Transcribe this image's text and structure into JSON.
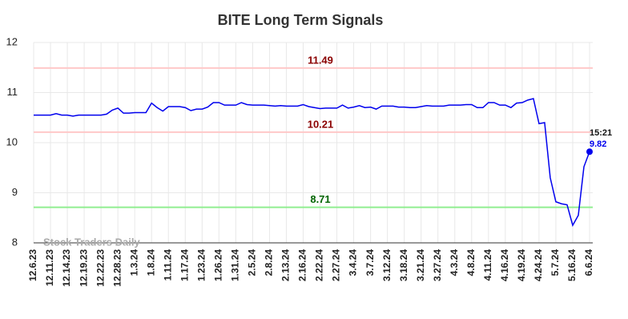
{
  "chart_data": {
    "type": "line",
    "title": "BITE Long Term Signals",
    "categories": [
      "12.6.23",
      null,
      null,
      "12.11.23",
      null,
      null,
      "12.14.23",
      null,
      null,
      "12.19.23",
      null,
      null,
      "12.22.23",
      null,
      null,
      "12.28.23",
      null,
      null,
      "1.3.24",
      null,
      null,
      "1.8.24",
      null,
      null,
      "1.11.24",
      null,
      null,
      "1.17.24",
      null,
      null,
      "1.23.24",
      null,
      null,
      "1.26.24",
      null,
      null,
      "1.31.24",
      null,
      null,
      "2.5.24",
      null,
      null,
      "2.8.24",
      null,
      null,
      "2.13.24",
      null,
      null,
      "2.16.24",
      null,
      null,
      "2.22.24",
      null,
      null,
      "2.27.24",
      null,
      null,
      "3.4.24",
      null,
      null,
      "3.7.24",
      null,
      null,
      "3.12.24",
      null,
      null,
      "3.18.24",
      null,
      null,
      "3.21.24",
      null,
      null,
      "3.27.24",
      null,
      null,
      "4.3.24",
      null,
      null,
      "4.8.24",
      null,
      null,
      "4.11.24",
      null,
      null,
      "4.16.24",
      null,
      null,
      "4.19.24",
      null,
      null,
      "4.24.24",
      null,
      null,
      "5.7.24",
      null,
      null,
      "5.16.24",
      null,
      null,
      "6.6.24"
    ],
    "values": [
      10.55,
      10.55,
      10.55,
      10.55,
      10.58,
      10.55,
      10.55,
      10.53,
      10.55,
      10.55,
      10.55,
      10.55,
      10.55,
      10.57,
      10.65,
      10.69,
      10.59,
      10.59,
      10.6,
      10.6,
      10.6,
      10.79,
      10.7,
      10.63,
      10.72,
      10.72,
      10.72,
      10.7,
      10.64,
      10.67,
      10.67,
      10.71,
      10.8,
      10.8,
      10.75,
      10.75,
      10.75,
      10.8,
      10.76,
      10.75,
      10.75,
      10.75,
      10.74,
      10.73,
      10.74,
      10.73,
      10.73,
      10.73,
      10.76,
      10.72,
      10.7,
      10.68,
      10.69,
      10.69,
      10.69,
      10.75,
      10.69,
      10.71,
      10.74,
      10.7,
      10.71,
      10.67,
      10.73,
      10.73,
      10.73,
      10.71,
      10.71,
      10.7,
      10.7,
      10.72,
      10.74,
      10.73,
      10.73,
      10.73,
      10.75,
      10.75,
      10.75,
      10.76,
      10.76,
      10.7,
      10.7,
      10.8,
      10.8,
      10.75,
      10.75,
      10.7,
      10.79,
      10.8,
      10.85,
      10.88,
      10.38,
      10.4,
      9.3,
      8.82,
      8.78,
      8.76,
      8.35,
      8.55,
      9.52,
      9.82
    ],
    "color": "#0000ee",
    "ylim": [
      8,
      12
    ],
    "yticks": [
      8,
      9,
      10,
      11,
      12
    ],
    "grid": true,
    "reference_lines": [
      {
        "value": 11.49,
        "color": "#ffc8c8",
        "text_color": "#8b0000"
      },
      {
        "value": 10.21,
        "color": "#ffc8c8",
        "text_color": "#8b0000"
      },
      {
        "value": 8.71,
        "color": "#90ee90",
        "text_color": "#006400"
      }
    ],
    "last_time": "15:21",
    "watermark": "Stock Traders Daily"
  }
}
